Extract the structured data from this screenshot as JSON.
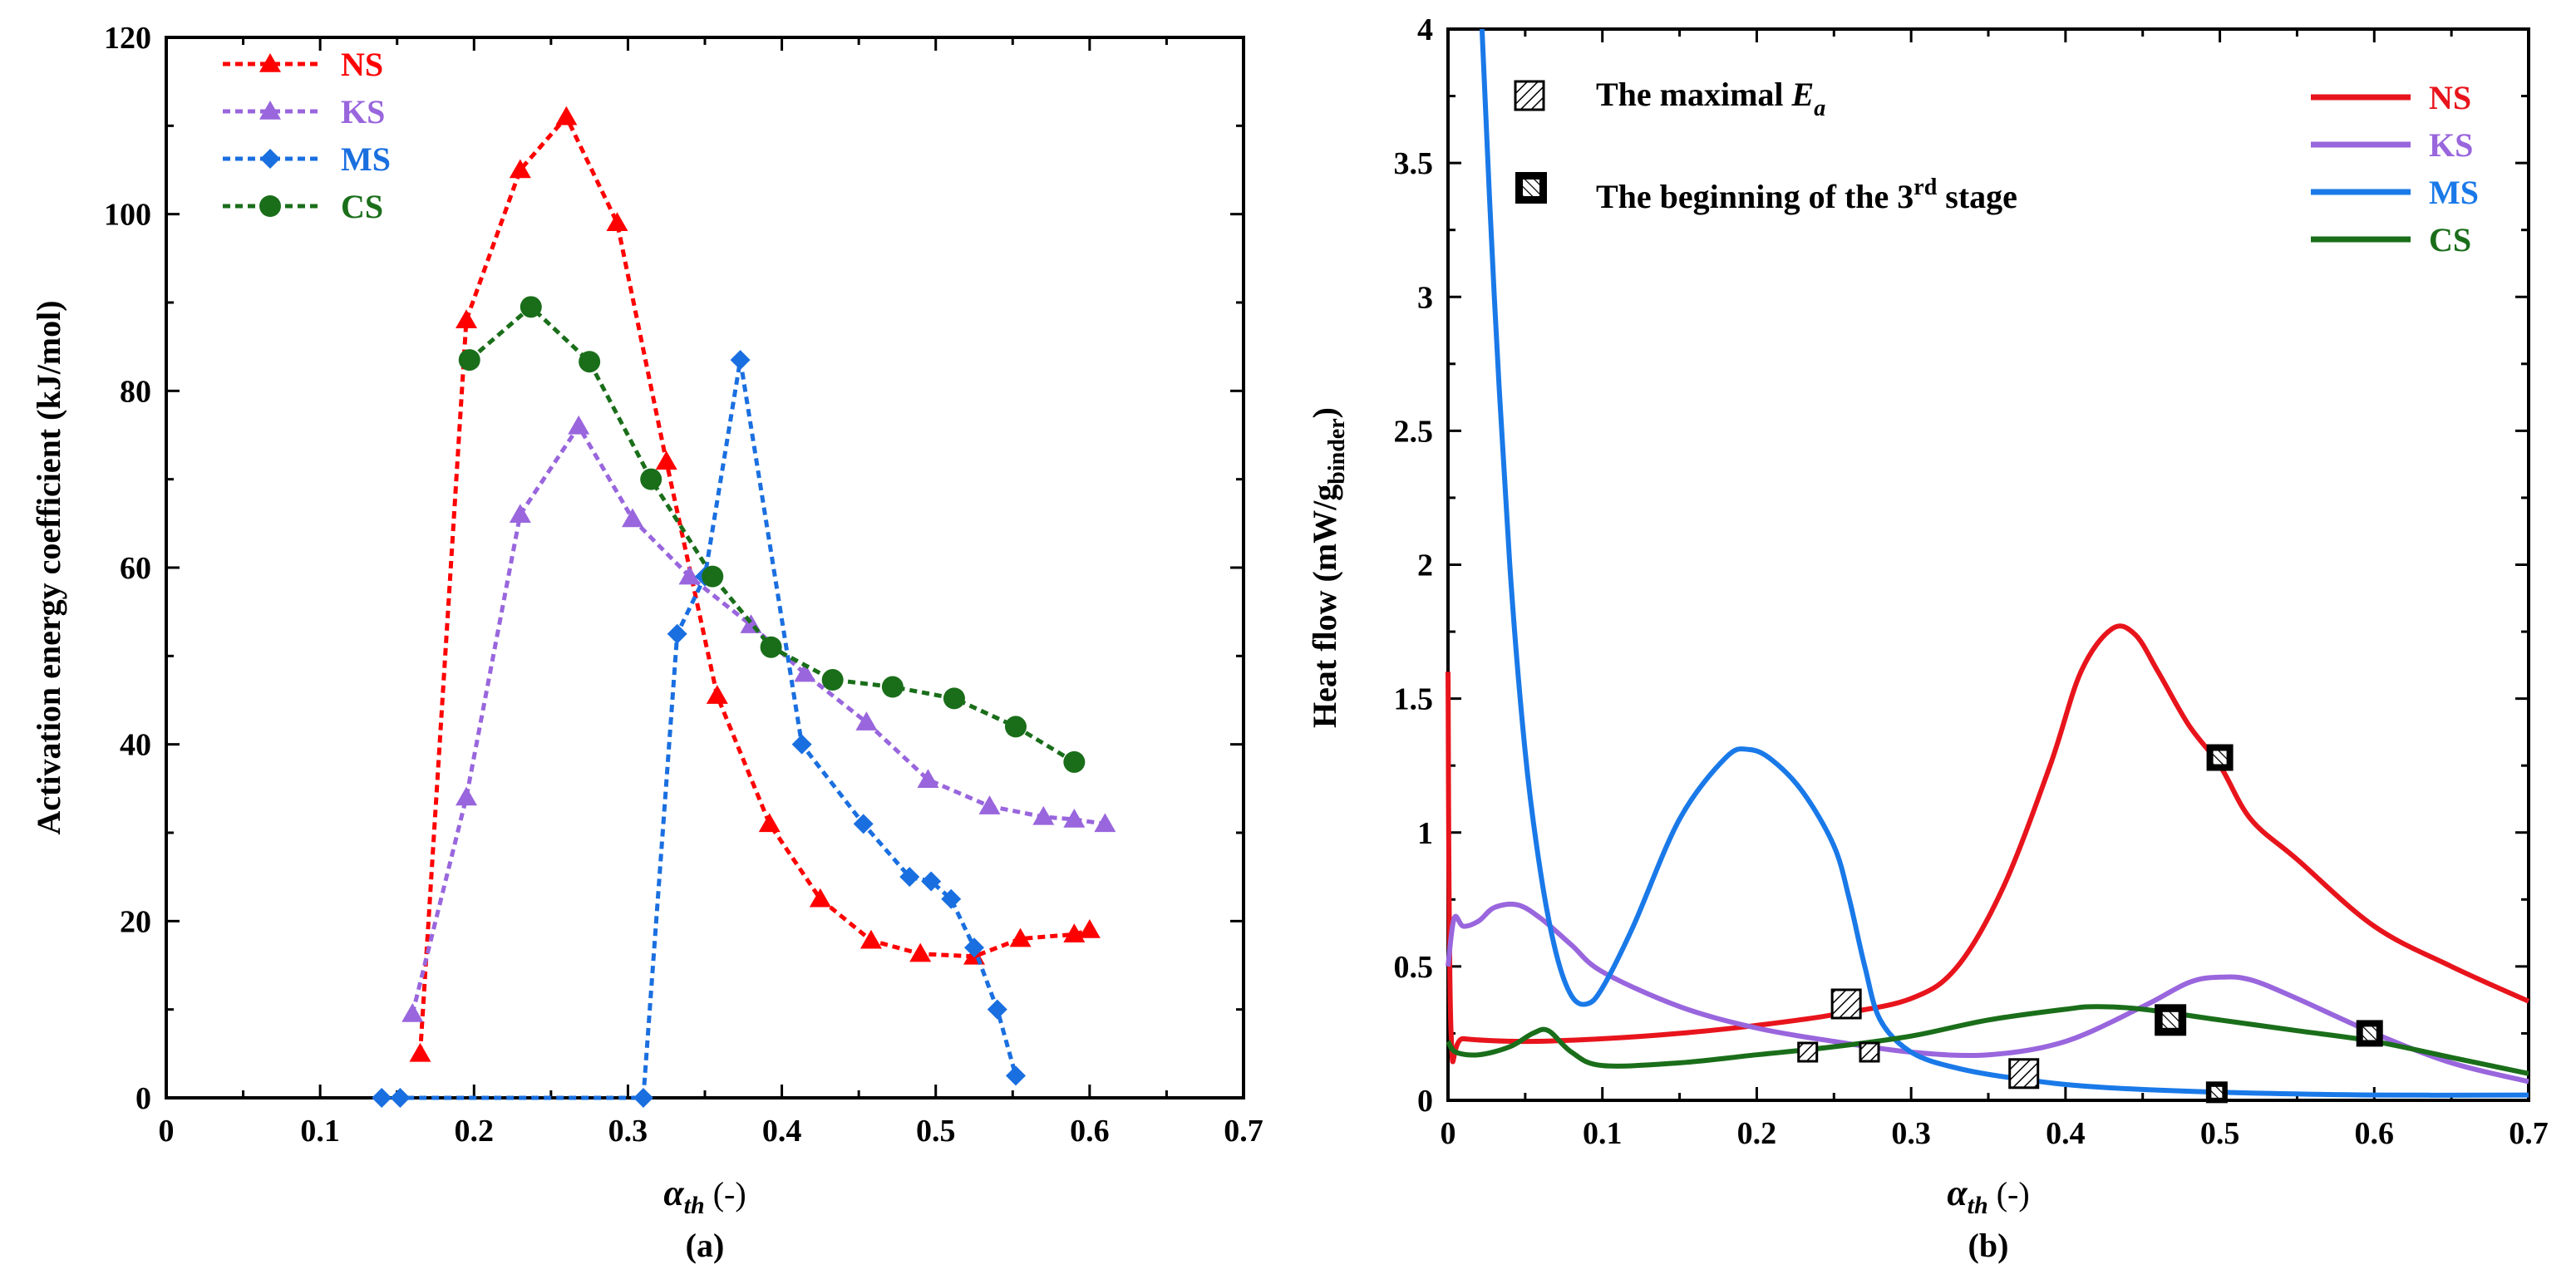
{
  "chart_data": [
    {
      "type": "line",
      "panel_label": "(a)",
      "xlabel_main": "α",
      "xlabel_sub": "th",
      "xlabel_suffix": " (-)",
      "ylabel": "Activation energy coefficient (kJ/mol)",
      "xlim": [
        0,
        0.7
      ],
      "ylim": [
        0,
        120
      ],
      "x_ticks": [
        0,
        0.1,
        0.2,
        0.3,
        0.4,
        0.5,
        0.6,
        0.7
      ],
      "x_tick_labels": [
        "0",
        "0.1",
        "0.2",
        "0.3",
        "0.4",
        "0.5",
        "0.6",
        "0.7"
      ],
      "y_ticks": [
        0,
        20,
        40,
        60,
        80,
        100,
        120
      ],
      "y_tick_labels": [
        "0",
        "20",
        "40",
        "60",
        "80",
        "100",
        "120"
      ],
      "legend_position": "top-left",
      "series": [
        {
          "name": "NS",
          "color": "#ff0000",
          "marker": "triangle",
          "x": [
            0.165,
            0.195,
            0.23,
            0.26,
            0.293,
            0.325,
            0.358,
            0.392,
            0.425,
            0.458,
            0.49,
            0.525,
            0.555,
            0.59,
            0.6
          ],
          "y": [
            5,
            88,
            105,
            111,
            99,
            72,
            45.5,
            31,
            22.5,
            17.8,
            16.3,
            16,
            18,
            18.5,
            19
          ]
        },
        {
          "name": "KS",
          "color": "#9966dd",
          "marker": "triangle",
          "x": [
            0.16,
            0.195,
            0.23,
            0.268,
            0.303,
            0.34,
            0.38,
            0.415,
            0.455,
            0.495,
            0.535,
            0.57,
            0.59,
            0.61
          ],
          "y": [
            9.5,
            34,
            66,
            76,
            65.5,
            59,
            53.5,
            48,
            42.5,
            36,
            33,
            31.8,
            31.5,
            31
          ]
        },
        {
          "name": "MS",
          "color": "#1a6fe0",
          "marker": "diamond",
          "x": [
            0.14,
            0.152,
            0.31,
            0.332,
            0.35,
            0.373,
            0.413,
            0.453,
            0.483,
            0.497,
            0.51,
            0.525,
            0.54,
            0.552
          ],
          "y": [
            0,
            0,
            0,
            52.5,
            59,
            83.5,
            40,
            31,
            25,
            24.5,
            22.5,
            17,
            10,
            2.5
          ]
        },
        {
          "name": "CS",
          "color": "#1a6e1a",
          "marker": "circle",
          "x": [
            0.197,
            0.237,
            0.275,
            0.315,
            0.355,
            0.393,
            0.433,
            0.472,
            0.512,
            0.552,
            0.59
          ],
          "y": [
            83.5,
            89.5,
            83.3,
            70,
            59,
            51,
            47.3,
            46.5,
            45.2,
            42,
            38
          ]
        }
      ]
    },
    {
      "type": "line",
      "panel_label": "(b)",
      "xlabel_main": "α",
      "xlabel_sub": "th",
      "xlabel_suffix": " (-)",
      "ylabel_main": "Heat flow (mW/g",
      "ylabel_sub": "binder",
      "ylabel_suffix": ")",
      "xlim": [
        0,
        0.7
      ],
      "ylim": [
        0,
        4
      ],
      "x_ticks": [
        0,
        0.1,
        0.2,
        0.3,
        0.4,
        0.5,
        0.6,
        0.7
      ],
      "x_tick_labels": [
        "0",
        "0.1",
        "0.2",
        "0.3",
        "0.4",
        "0.5",
        "0.6",
        "0.7"
      ],
      "y_ticks": [
        0,
        0.5,
        1,
        1.5,
        2,
        2.5,
        3,
        3.5,
        4
      ],
      "y_tick_labels": [
        "0",
        "0.5",
        "1",
        "1.5",
        "2",
        "2.5",
        "3",
        "3.5",
        "4"
      ],
      "legend_position": "top-right",
      "annotations": {
        "maximal_main": "The maximal ",
        "maximal_var": "E",
        "maximal_sub": "a",
        "stage_main": "The beginning of the 3",
        "stage_sup": "rd",
        "stage_suffix": " stage"
      },
      "series": [
        {
          "name": "NS",
          "color": "#e8141c",
          "x": [
            0,
            0.002,
            0.01,
            0.05,
            0.1,
            0.15,
            0.2,
            0.25,
            0.3,
            0.33,
            0.36,
            0.39,
            0.41,
            0.43,
            0.445,
            0.46,
            0.48,
            0.5,
            0.52,
            0.55,
            0.6,
            0.65,
            0.7
          ],
          "y": [
            1.6,
            0.25,
            0.23,
            0.22,
            0.23,
            0.25,
            0.28,
            0.32,
            0.38,
            0.5,
            0.8,
            1.25,
            1.6,
            1.76,
            1.74,
            1.6,
            1.4,
            1.25,
            1.05,
            0.9,
            0.65,
            0.5,
            0.37
          ]
        },
        {
          "name": "KS",
          "color": "#9966dd",
          "x": [
            0,
            0.004,
            0.01,
            0.02,
            0.03,
            0.045,
            0.06,
            0.08,
            0.1,
            0.15,
            0.2,
            0.25,
            0.3,
            0.35,
            0.4,
            0.45,
            0.48,
            0.5,
            0.52,
            0.55,
            0.6,
            0.65,
            0.7
          ],
          "y": [
            0.5,
            0.68,
            0.65,
            0.67,
            0.72,
            0.73,
            0.68,
            0.58,
            0.48,
            0.35,
            0.27,
            0.22,
            0.18,
            0.17,
            0.22,
            0.35,
            0.44,
            0.46,
            0.45,
            0.38,
            0.25,
            0.14,
            0.07
          ]
        },
        {
          "name": "MS",
          "color": "#1a79e8",
          "x": [
            0.022,
            0.03,
            0.04,
            0.05,
            0.06,
            0.07,
            0.08,
            0.09,
            0.1,
            0.12,
            0.15,
            0.18,
            0.195,
            0.21,
            0.23,
            0.25,
            0.26,
            0.27,
            0.28,
            0.3,
            0.33,
            0.37,
            0.42,
            0.5,
            0.6,
            0.7
          ],
          "y": [
            4.0,
            3.0,
            2.0,
            1.3,
            0.85,
            0.55,
            0.39,
            0.36,
            0.42,
            0.65,
            1.05,
            1.28,
            1.31,
            1.27,
            1.15,
            0.95,
            0.75,
            0.5,
            0.3,
            0.18,
            0.12,
            0.08,
            0.05,
            0.03,
            0.02,
            0.02
          ]
        },
        {
          "name": "CS",
          "color": "#1a6e1a",
          "x": [
            0,
            0.005,
            0.02,
            0.04,
            0.055,
            0.065,
            0.08,
            0.1,
            0.15,
            0.2,
            0.25,
            0.3,
            0.35,
            0.4,
            0.42,
            0.45,
            0.5,
            0.55,
            0.6,
            0.65,
            0.7
          ],
          "y": [
            0.22,
            0.18,
            0.17,
            0.2,
            0.25,
            0.26,
            0.18,
            0.13,
            0.14,
            0.17,
            0.2,
            0.24,
            0.3,
            0.34,
            0.35,
            0.34,
            0.3,
            0.26,
            0.22,
            0.16,
            0.1
          ]
        }
      ],
      "markers_maximal_Ea": [
        {
          "x": 0.258,
          "y": 0.36,
          "size": "large"
        },
        {
          "x": 0.373,
          "y": 0.1,
          "size": "large"
        },
        {
          "x": 0.233,
          "y": 0.18,
          "size": "small"
        },
        {
          "x": 0.273,
          "y": 0.18,
          "size": "small"
        }
      ],
      "markers_stage3": [
        {
          "x": 0.5,
          "y": 1.28,
          "size": "medium"
        },
        {
          "x": 0.468,
          "y": 0.3,
          "size": "large"
        },
        {
          "x": 0.597,
          "y": 0.25,
          "size": "medium"
        },
        {
          "x": 0.498,
          "y": 0.03,
          "size": "small"
        }
      ]
    }
  ]
}
